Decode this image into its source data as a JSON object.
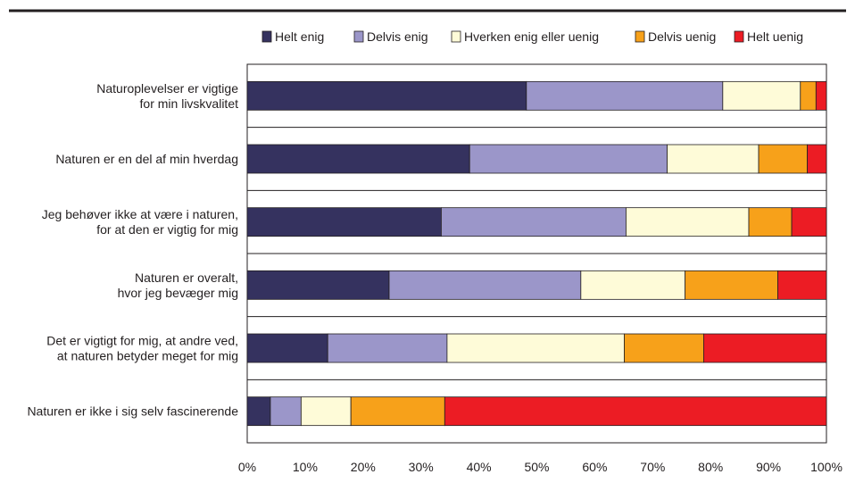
{
  "chart_data": {
    "type": "bar",
    "orientation": "horizontal",
    "stacked": true,
    "title": "",
    "xlabel": "",
    "ylabel": "",
    "xlim": [
      0,
      100
    ],
    "grid": true,
    "legend_position": "top",
    "categories": [
      [
        "Naturoplevelser er vigtige",
        "for min livskvalitet"
      ],
      [
        "Naturen er en del af min hverdag"
      ],
      [
        "Jeg behøver ikke at være i naturen,",
        "for at den er vigtig for mig"
      ],
      [
        "Naturen er overalt,",
        "hvor jeg bevæger mig"
      ],
      [
        "Det er vigtigt for mig, at andre ved,",
        "at naturen betyder meget for mig"
      ],
      [
        "Naturen er ikke i sig selv fascinerende"
      ]
    ],
    "x_ticks": [
      "0%",
      "10%",
      "20%",
      "30%",
      "40%",
      "50%",
      "60%",
      "70%",
      "80%",
      "90%",
      "100%"
    ],
    "series": [
      {
        "name": "Helt enig",
        "color": "#35325f",
        "values": [
          48.2,
          38.4,
          33.5,
          24.5,
          13.9,
          4.0
        ]
      },
      {
        "name": "Delvis enig",
        "color": "#9b96c9",
        "values": [
          33.9,
          34.1,
          31.9,
          33.1,
          20.6,
          5.3
        ]
      },
      {
        "name": "Hverken enig eller uenig",
        "color": "#fefbd8",
        "values": [
          13.4,
          15.8,
          21.2,
          18.0,
          30.6,
          8.6
        ]
      },
      {
        "name": "Delvis uenig",
        "color": "#f7a11a",
        "values": [
          2.7,
          8.4,
          7.4,
          16.0,
          13.7,
          16.2
        ]
      },
      {
        "name": "Helt uenig",
        "color": "#ec1c24",
        "values": [
          1.8,
          3.3,
          6.0,
          8.4,
          21.2,
          65.9
        ]
      }
    ]
  }
}
